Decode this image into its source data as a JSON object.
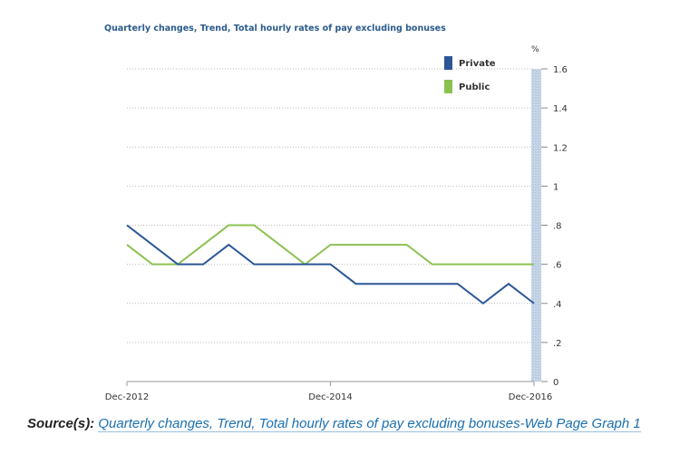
{
  "chart_data": {
    "type": "line",
    "title": "Quarterly changes, Trend, Total hourly rates of pay excluding bonuses",
    "ylabel": "%",
    "ylim": [
      0,
      1.6
    ],
    "y_ticks": [
      "0",
      ".2",
      ".4",
      ".6",
      ".8",
      "1",
      "1.2",
      "1.4",
      "1.6"
    ],
    "y_tick_values": [
      0,
      0.2,
      0.4,
      0.6,
      0.8,
      1.0,
      1.2,
      1.4,
      1.6
    ],
    "x_tick_labels": [
      "Dec-2012",
      "Dec-2014",
      "Dec-2016"
    ],
    "x_tick_indices": [
      0,
      8,
      16
    ],
    "x_count": 17,
    "grid": true,
    "legend_position": "top-right",
    "series": [
      {
        "name": "Private",
        "color": "#2b5797",
        "values": [
          0.8,
          0.7,
          0.6,
          0.6,
          0.7,
          0.6,
          0.6,
          0.6,
          0.6,
          0.5,
          0.5,
          0.5,
          0.5,
          0.5,
          0.4,
          0.5,
          0.4
        ]
      },
      {
        "name": "Public",
        "color": "#8cc152",
        "values": [
          0.7,
          0.6,
          0.6,
          0.7,
          0.8,
          0.8,
          0.7,
          0.6,
          0.7,
          0.7,
          0.7,
          0.7,
          0.6,
          0.6,
          0.6,
          0.6,
          0.6
        ]
      }
    ]
  },
  "source": {
    "label": "Source(s):",
    "link_text": "Quarterly changes, Trend, Total hourly rates of pay excluding bonuses-Web Page Graph 1"
  }
}
